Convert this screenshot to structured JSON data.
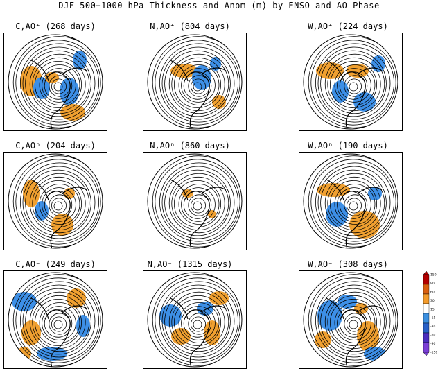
{
  "title": "DJF 500−1000 hPa Thickness and Anom (m) by ENSO and AO Phase",
  "panels": [
    {
      "enso": "C",
      "ao": "+",
      "label": "C,AO⁺ (268 days)"
    },
    {
      "enso": "N",
      "ao": "+",
      "label": "N,AO⁺ (804 days)"
    },
    {
      "enso": "W",
      "ao": "+",
      "label": "W,AO⁺ (224 days)"
    },
    {
      "enso": "C",
      "ao": "n",
      "label": "C,AOⁿ (204 days)"
    },
    {
      "enso": "N",
      "ao": "n",
      "label": "N,AOⁿ (860 days)"
    },
    {
      "enso": "W",
      "ao": "n",
      "label": "W,AOⁿ (190 days)"
    },
    {
      "enso": "C",
      "ao": "-",
      "label": "C,AO⁻ (249 days)"
    },
    {
      "enso": "N",
      "ao": "-",
      "label": "N,AO⁻ (1315 days)"
    },
    {
      "enso": "W",
      "ao": "-",
      "label": "W,AO⁻ (308 days)"
    }
  ],
  "colorbar": {
    "ticks": [
      "150",
      "90",
      "60",
      "30",
      "15",
      "-15",
      "-30",
      "-60",
      "-90",
      "-150"
    ],
    "colors": [
      "#b30000",
      "#d95f0e",
      "#f39b2a",
      "#ffffff",
      "#3a8fe0",
      "#2760c8",
      "#4a2dbf",
      "#7b3fd6"
    ]
  },
  "colors": {
    "warm": "#f0a030",
    "cool": "#3d8fe6",
    "contour": "#000000",
    "land": "#000000"
  }
}
